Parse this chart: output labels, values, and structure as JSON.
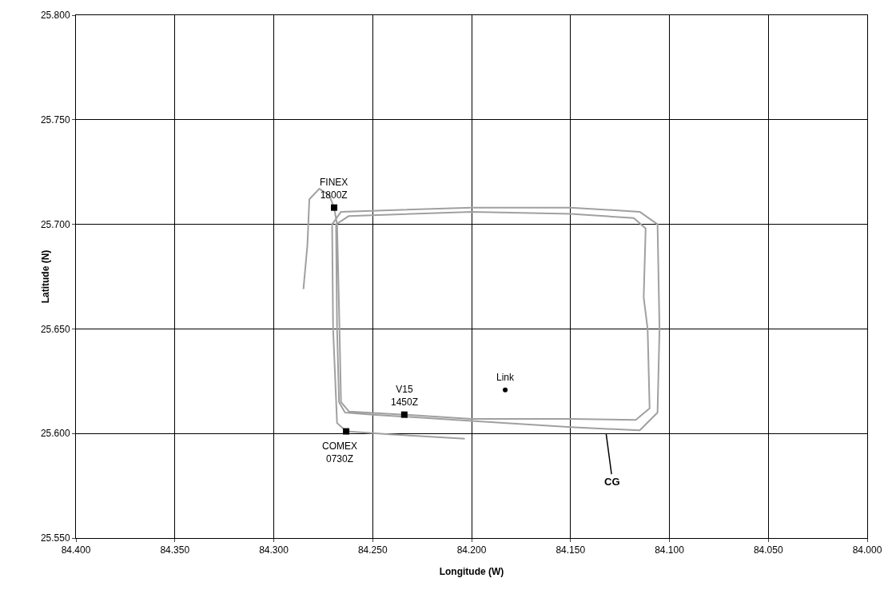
{
  "chart_data": {
    "type": "line",
    "xlabel": "Longitude (W)",
    "ylabel": "Latitude (N)",
    "xlim": [
      84.4,
      84.0
    ],
    "xticks": [
      {
        "value": 84.4,
        "label": "84.400"
      },
      {
        "value": 84.35,
        "label": "84.350"
      },
      {
        "value": 84.3,
        "label": "84.300"
      },
      {
        "value": 84.25,
        "label": "84.250"
      },
      {
        "value": 84.2,
        "label": "84.200"
      },
      {
        "value": 84.15,
        "label": "84.150"
      },
      {
        "value": 84.1,
        "label": "84.100"
      },
      {
        "value": 84.05,
        "label": "84.050"
      },
      {
        "value": 84.0,
        "label": "84.000"
      }
    ],
    "ylim": [
      25.55,
      25.8
    ],
    "yticks": [
      {
        "value": 25.55,
        "label": "25.550"
      },
      {
        "value": 25.6,
        "label": "25.600"
      },
      {
        "value": 25.65,
        "label": "25.650"
      },
      {
        "value": 25.7,
        "label": "25.700"
      },
      {
        "value": 25.75,
        "label": "25.750"
      },
      {
        "value": 25.8,
        "label": "25.800"
      }
    ],
    "grid": true,
    "series": [
      {
        "color": "#a0a0a0",
        "marker": "none",
        "line_style": "solid",
        "x": [
          84.2034,
          84.24,
          84.2634,
          84.268,
          84.27,
          84.2705,
          84.266,
          84.2,
          84.15,
          84.115,
          84.106,
          84.105,
          84.106,
          84.115,
          84.15,
          84.2,
          84.25,
          84.264,
          84.267,
          84.268,
          84.2685,
          84.262,
          84.2,
          84.15,
          84.118,
          84.112,
          84.113,
          84.111,
          84.11,
          84.117,
          84.15,
          84.2,
          84.234,
          84.262,
          84.266,
          84.267,
          84.268,
          84.2695,
          84.272,
          84.277,
          84.282,
          84.283,
          84.285
        ],
        "values": [
          25.5975,
          25.5995,
          25.601,
          25.605,
          25.65,
          25.7,
          25.706,
          25.708,
          25.708,
          25.706,
          25.7,
          25.65,
          25.61,
          25.6015,
          25.603,
          25.606,
          25.609,
          25.61,
          25.615,
          25.65,
          25.7,
          25.704,
          25.706,
          25.705,
          25.703,
          25.698,
          25.665,
          25.65,
          25.612,
          25.6065,
          25.607,
          25.607,
          25.609,
          25.6105,
          25.615,
          25.66,
          25.7,
          25.708,
          25.714,
          25.717,
          25.712,
          25.69,
          25.669
        ]
      },
      {
        "type": "scatter",
        "color": "#000000",
        "marker": "square",
        "x": [
          84.2695,
          84.234,
          84.2634
        ],
        "values": [
          25.708,
          25.609,
          25.601
        ]
      },
      {
        "type": "scatter",
        "color": "#000000",
        "marker": "circle",
        "x": [
          84.183
        ],
        "values": [
          25.6208
        ]
      }
    ],
    "annotations": [
      {
        "text": "FINEX\n1800Z",
        "x": 84.2695,
        "y": 25.708
      },
      {
        "text": "V15\n1450Z",
        "x": 84.234,
        "y": 25.609
      },
      {
        "text": "COMEX\n0730Z",
        "x": 84.2634,
        "y": 25.601
      },
      {
        "text": "Link",
        "x": 84.183,
        "y": 25.6208
      },
      {
        "text": "CG",
        "x": 84.132,
        "y": 25.6
      }
    ]
  }
}
